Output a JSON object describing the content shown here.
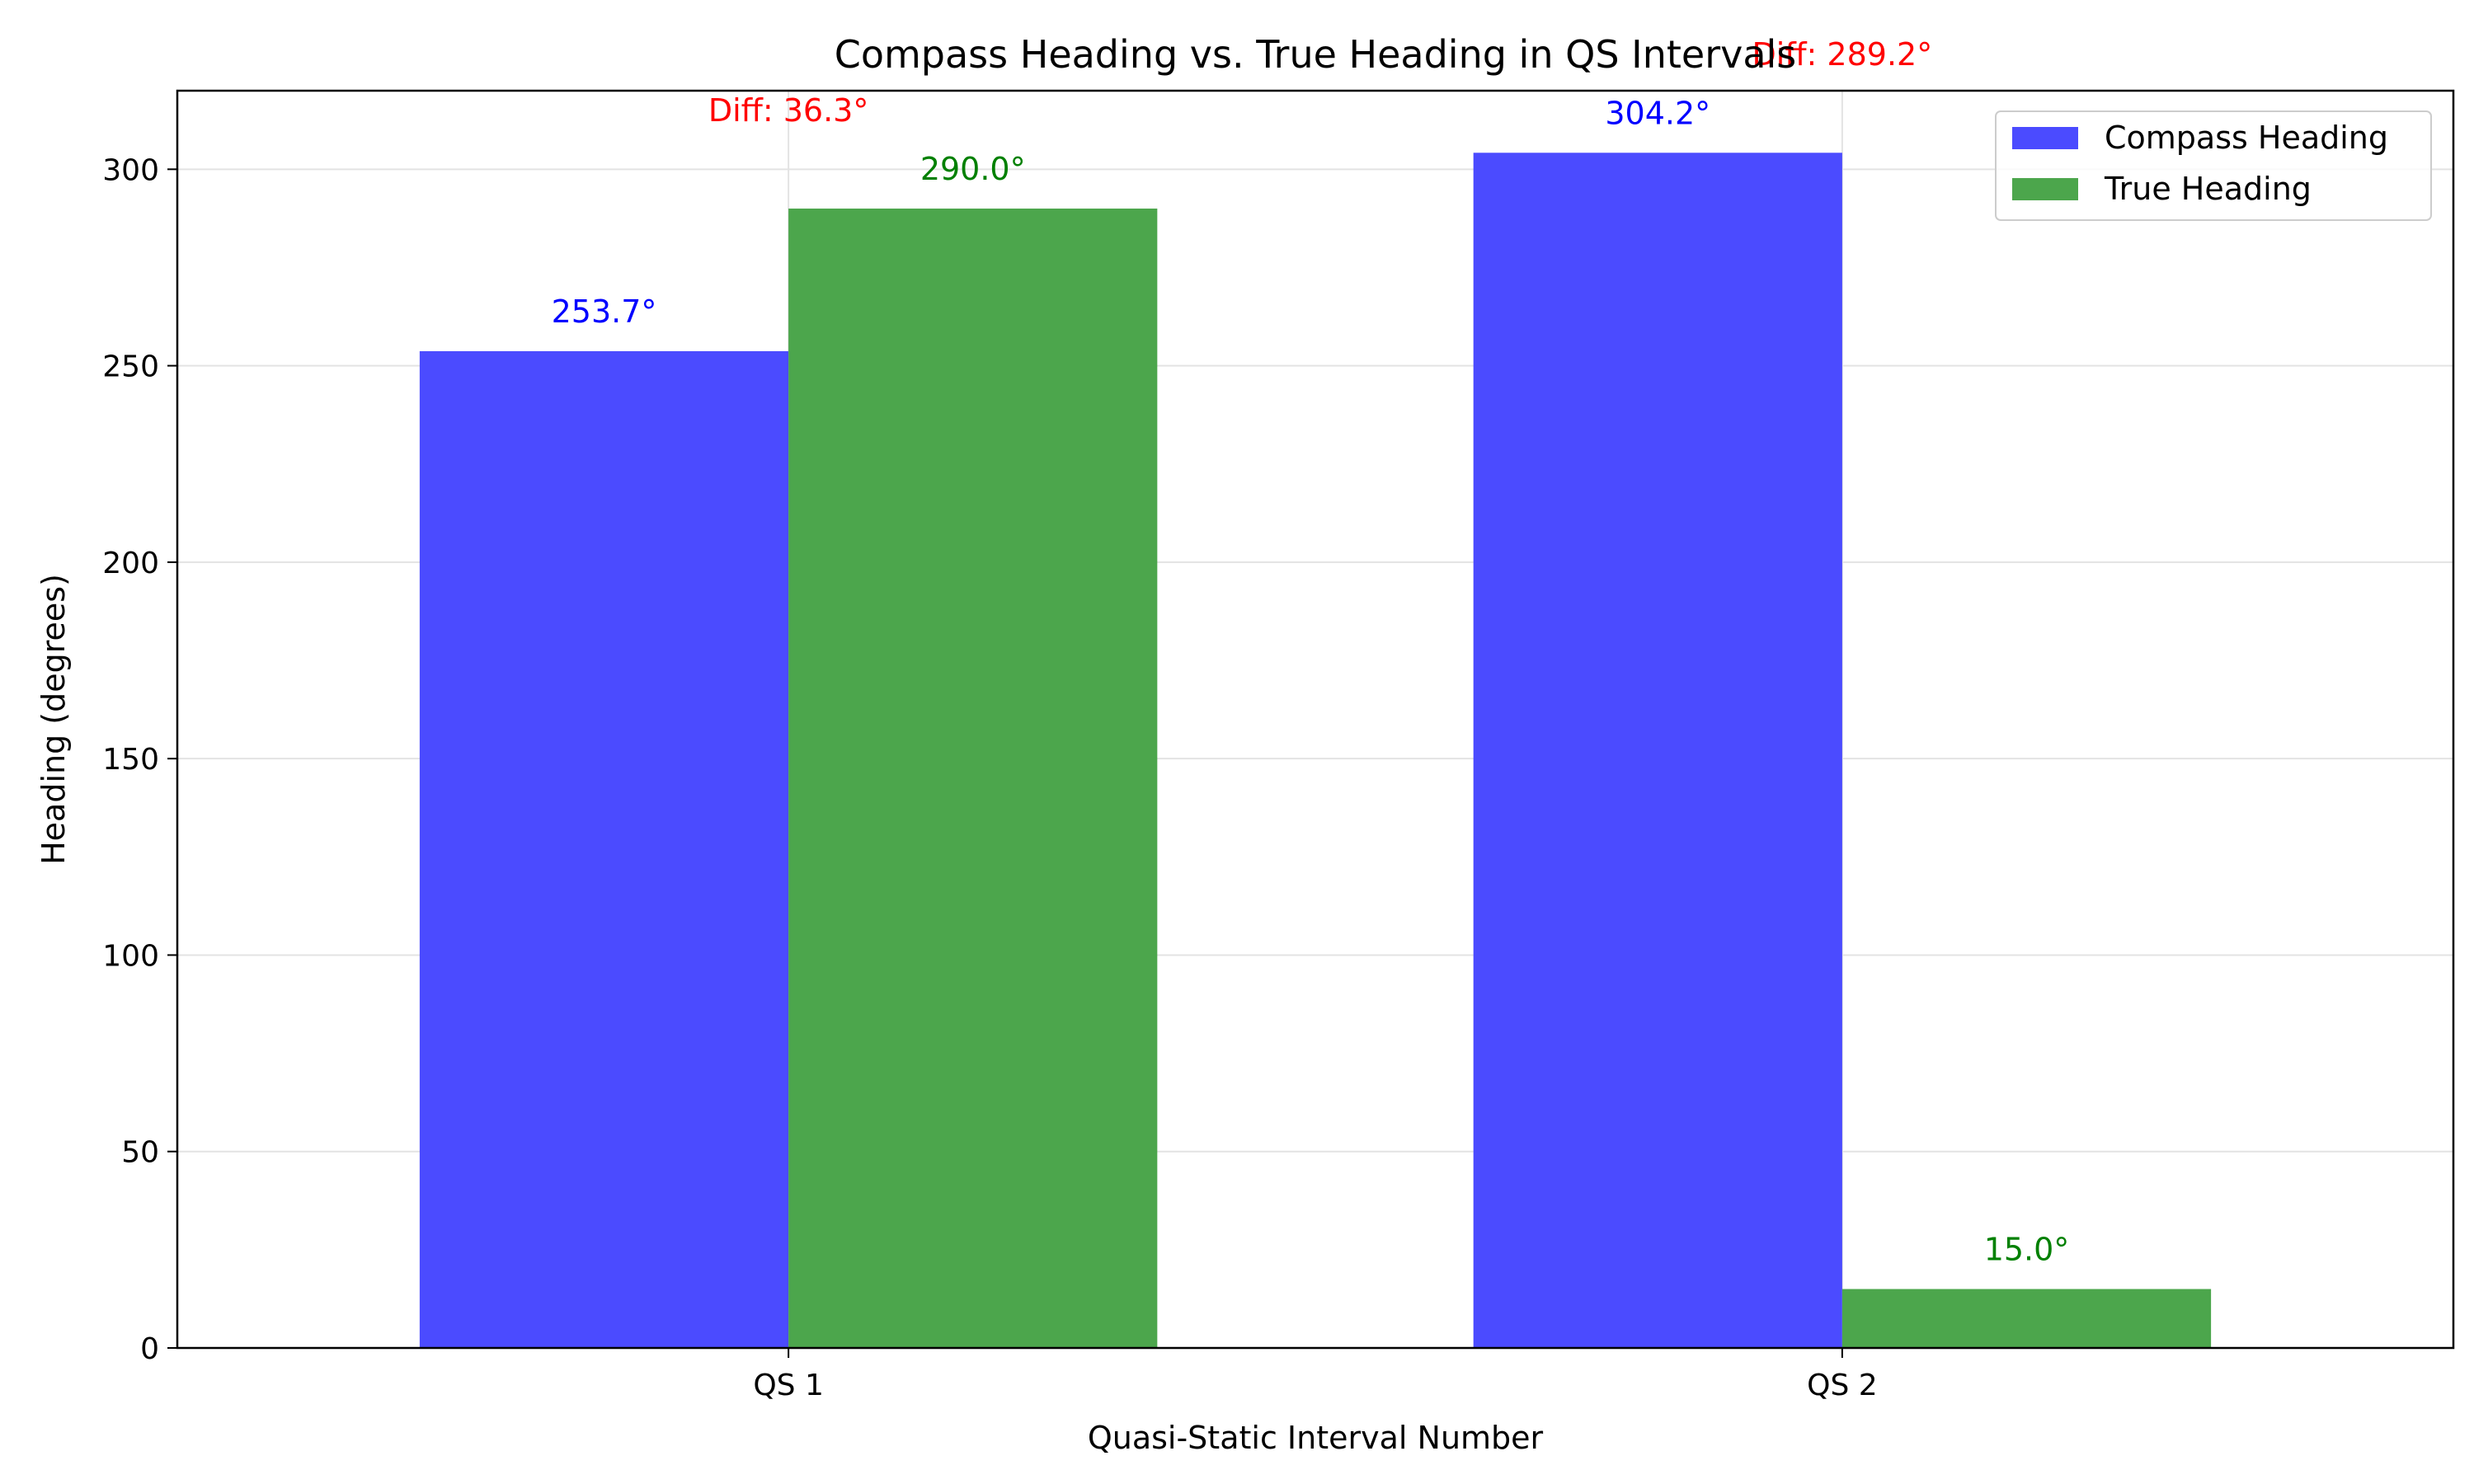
{
  "chart_data": {
    "type": "bar",
    "title": "Compass Heading vs. True Heading in QS Intervals",
    "xlabel": "Quasi-Static Interval Number",
    "ylabel": "Heading (degrees)",
    "categories": [
      "QS 1",
      "QS 2"
    ],
    "ylim": [
      0,
      320
    ],
    "yticks": [
      0,
      50,
      100,
      150,
      200,
      250,
      300
    ],
    "ytick_labels": [
      "0",
      "50",
      "100",
      "150",
      "200",
      "250",
      "300"
    ],
    "grid": true,
    "legend_position": "top-right",
    "series": [
      {
        "name": "Compass Heading",
        "color": "#4b4bff",
        "label_color": "#0000ff",
        "values": [
          253.7,
          304.2
        ],
        "labels": [
          "253.7°",
          "304.2°"
        ]
      },
      {
        "name": "True Heading",
        "color": "#4ca64c",
        "label_color": "#008000",
        "values": [
          290.0,
          15.0
        ],
        "labels": [
          "290.0°",
          "15.0°"
        ]
      }
    ],
    "annotations": {
      "color": "#ff0000",
      "items": [
        {
          "category": "QS 1",
          "text": "Diff: 36.3°"
        },
        {
          "category": "QS 2",
          "text": "Diff: 289.2°"
        }
      ]
    }
  }
}
